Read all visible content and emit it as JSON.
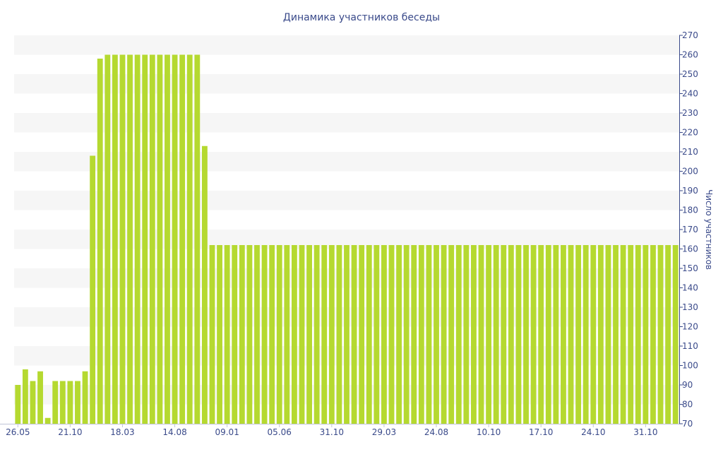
{
  "chart_data": {
    "type": "bar",
    "title": "Динамика участников беседы",
    "xlabel": "",
    "ylabel": "Число участников",
    "ylim": [
      70,
      270
    ],
    "yticks": [
      70,
      80,
      90,
      100,
      110,
      120,
      130,
      140,
      150,
      160,
      170,
      180,
      190,
      200,
      210,
      220,
      230,
      240,
      250,
      260,
      270
    ],
    "y_axis_side": "right",
    "grid": "alternating horizontal bands",
    "x_tick_labels": [
      {
        "label": "26.05",
        "bar_index": 0
      },
      {
        "label": "21.10",
        "bar_index": 7
      },
      {
        "label": "18.03",
        "bar_index": 14
      },
      {
        "label": "14.08",
        "bar_index": 21
      },
      {
        "label": "09.01",
        "bar_index": 28
      },
      {
        "label": "05.06",
        "bar_index": 35
      },
      {
        "label": "31.10",
        "bar_index": 42
      },
      {
        "label": "29.03",
        "bar_index": 49
      },
      {
        "label": "24.08",
        "bar_index": 56
      },
      {
        "label": "10.10",
        "bar_index": 63
      },
      {
        "label": "17.10",
        "bar_index": 70
      },
      {
        "label": "24.10",
        "bar_index": 77
      },
      {
        "label": "31.10",
        "bar_index": 84
      }
    ],
    "series": [
      {
        "color": "#b5d930",
        "values": [
          90,
          98,
          92,
          97,
          73,
          92,
          92,
          92,
          92,
          97,
          208,
          258,
          260,
          260,
          260,
          260,
          260,
          260,
          260,
          260,
          260,
          260,
          260,
          260,
          260,
          213,
          162,
          162,
          162,
          162,
          162,
          162,
          162,
          162,
          162,
          162,
          162,
          162,
          162,
          162,
          162,
          162,
          162,
          162,
          162,
          162,
          162,
          162,
          162,
          162,
          162,
          162,
          162,
          162,
          162,
          162,
          162,
          162,
          162,
          162,
          162,
          162,
          162,
          162,
          162,
          162,
          162,
          162,
          162,
          162,
          162,
          162,
          162,
          162,
          162,
          162,
          162,
          162,
          162,
          162,
          162,
          162,
          162,
          162,
          162,
          162,
          162,
          162,
          162
        ]
      }
    ]
  }
}
